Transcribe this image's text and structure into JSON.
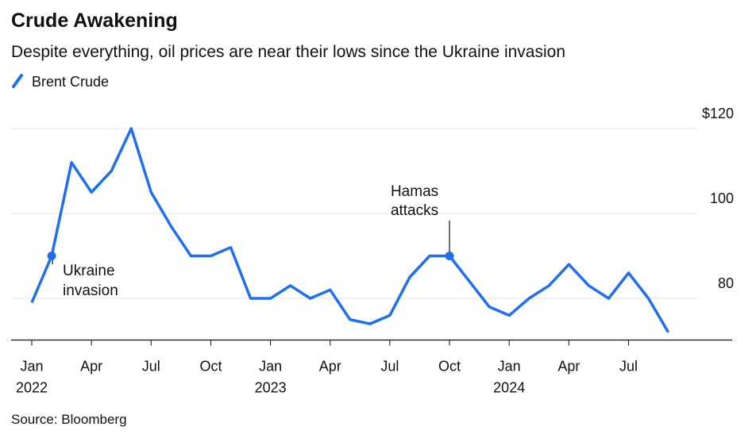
{
  "chart_data": {
    "type": "line",
    "title": "Crude Awakening",
    "subtitle": "Despite everything, oil prices are near their lows since the Ukraine invasion",
    "source": "Source: Bloomberg",
    "x": [
      "2022-01",
      "2022-02",
      "2022-03",
      "2022-04",
      "2022-05",
      "2022-06",
      "2022-07",
      "2022-08",
      "2022-09",
      "2022-10",
      "2022-11",
      "2022-12",
      "2023-01",
      "2023-02",
      "2023-03",
      "2023-04",
      "2023-05",
      "2023-06",
      "2023-07",
      "2023-08",
      "2023-09",
      "2023-10",
      "2023-11",
      "2023-12",
      "2024-01",
      "2024-02",
      "2024-03",
      "2024-04",
      "2024-05",
      "2024-06",
      "2024-07",
      "2024-08",
      "2024-09"
    ],
    "series": [
      {
        "name": "Brent Crude",
        "color": "#1f6ff0",
        "values": [
          79,
          90,
          112,
          105,
          110,
          120,
          105,
          97,
          90,
          90,
          92,
          80,
          80,
          83,
          80,
          82,
          75,
          74,
          76,
          85,
          90,
          90,
          84,
          78,
          76,
          80,
          83,
          88,
          83,
          80,
          86,
          80,
          72
        ]
      }
    ],
    "ylim": [
      70,
      130
    ],
    "yticks": [
      {
        "value": 80,
        "label": "80"
      },
      {
        "value": 100,
        "label": "100"
      },
      {
        "value": 120,
        "label": "$120"
      }
    ],
    "xticks": [
      {
        "value": "2022-01",
        "label": "Jan",
        "year": "2022"
      },
      {
        "value": "2022-04",
        "label": "Apr"
      },
      {
        "value": "2022-07",
        "label": "Jul"
      },
      {
        "value": "2022-10",
        "label": "Oct"
      },
      {
        "value": "2023-01",
        "label": "Jan",
        "year": "2023"
      },
      {
        "value": "2023-04",
        "label": "Apr"
      },
      {
        "value": "2023-07",
        "label": "Jul"
      },
      {
        "value": "2023-10",
        "label": "Oct"
      },
      {
        "value": "2024-01",
        "label": "Jan",
        "year": "2024"
      },
      {
        "value": "2024-04",
        "label": "Apr"
      },
      {
        "value": "2024-07",
        "label": "Jul"
      }
    ],
    "grid": true,
    "annotations": [
      {
        "x": "2022-02",
        "label": [
          "Ukraine",
          "invasion"
        ]
      },
      {
        "x": "2023-10",
        "label": [
          "Hamas",
          "attacks"
        ]
      }
    ]
  }
}
